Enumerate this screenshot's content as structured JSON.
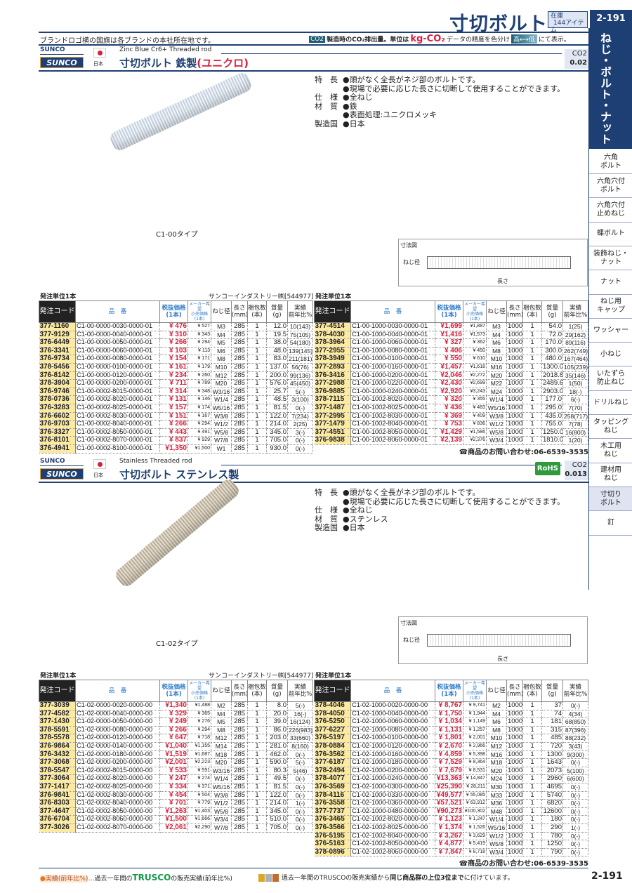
{
  "header": {
    "title": "寸切ボルト",
    "stock_label": "在庫",
    "stock_count": "144アイテム",
    "page": "2-191",
    "brand_note": "ブランドロゴ横の国旗は各ブランドの本社所在地です。",
    "co2_tag": "CO2",
    "co2_text": "製造時のCO₂排出量。単位は",
    "co2_unit": "kg-CO₂",
    "co2_accuracy": "データの精度を色分け",
    "co2_high": "高",
    "co2_low": "低",
    "co2_suffix": "にて表示。"
  },
  "sidebar": {
    "category": "ねじ・ボルト・ナット",
    "active": "寸切り\nボルト",
    "items": [
      "六角\nボルト",
      "六角穴付\nボルト",
      "六角穴付\n止めねじ",
      "蝶ボルト",
      "装飾ねじ・\nナット",
      "ナット",
      "ねじ用\nキャップ",
      "ワッシャー",
      "小ねじ",
      "いたずら\n防止ねじ",
      "ドリルねじ",
      "タッピング\nねじ",
      "木工用\nねじ",
      "建材用\nねじ",
      "寸切り\nボルト",
      "釘"
    ]
  },
  "table_headers": {
    "code": "発注コード",
    "part": "品　番",
    "price": "税抜価格\n(1本)",
    "maker_price": "メーカー希望\n小売価格\n(1本)",
    "size": "ねじ径",
    "length": "長さ\n(mm)",
    "qty": "梱包数\n(本)",
    "weight": "質量\n(g)",
    "sales": "実績\n前年比%"
  },
  "sections": [
    {
      "brand": "SUNCO",
      "logo": "SUNCO",
      "country": "日本",
      "en": "Zinc Blue Cr6+  Threaded rod",
      "title": "寸切ボルト 鉄製",
      "title_red": "(ユニクロ)",
      "co2_label": "CO2",
      "co2": "0.02",
      "rohs": "",
      "specs": [
        [
          "特　長",
          "●頭がなく全長がネジ部のボルトです。"
        ],
        [
          "",
          "●現場で必要に応じた長さに切断して使用することができます。"
        ],
        [
          "仕　様",
          "●全ねじ"
        ],
        [
          "材　質",
          "●鉄"
        ],
        [
          "",
          "●表面処理:ユニクロメッキ"
        ],
        [
          "製造国",
          "●日本"
        ]
      ],
      "caption": "C1-00タイプ",
      "diagram_title": "寸法図",
      "diagram_dia": "ねじ径",
      "diagram_len": "長さ",
      "left": {
        "unit": "発注単位1本",
        "maker": "サンコーインダストリー㈱[544977]",
        "rows": [
          [
            "377-1160",
            "C1-00-0000-0030-0000-01",
            "¥  476",
            "¥ 527",
            "M3",
            "285",
            "1",
            "12.0",
            "10(143)"
          ],
          [
            "377-9129",
            "C1-00-0000-0040-0000-01",
            "¥  310",
            "¥ 343",
            "M4",
            "285",
            "1",
            "19.5",
            "75(105)"
          ],
          [
            "376-6449",
            "C1-00-0000-0050-0000-01",
            "¥  266",
            "¥ 294",
            "M5",
            "285",
            "1",
            "38.0",
            "54(180)"
          ],
          [
            "376-3341",
            "C1-00-0000-0060-0000-01",
            "¥  103",
            "¥ 113",
            "M6",
            "285",
            "1",
            "48.0",
            "139(145)"
          ],
          [
            "376-9734",
            "C1-00-0000-0080-0000-01",
            "¥  154",
            "¥ 171",
            "M8",
            "285",
            "1",
            "83.0",
            "211(181)"
          ],
          [
            "378-5456",
            "C1-00-0000-0100-0000-01",
            "¥  161",
            "¥ 179",
            "M10",
            "285",
            "1",
            "137.0",
            "56(76)"
          ],
          [
            "376-8142",
            "C1-00-0000-0120-0000-01",
            "¥  234",
            "¥ 260",
            "M12",
            "285",
            "1",
            "200.0",
            "99(136)"
          ],
          [
            "378-3904",
            "C1-00-0000-0200-0000-01",
            "¥  711",
            "¥ 789",
            "M20",
            "285",
            "1",
            "576.0",
            "45(450)"
          ],
          [
            "376-9746",
            "C1-00-0002-8015-0000-01",
            "¥  314",
            "¥ 348",
            "W3/16",
            "285",
            "1",
            "25.7",
            "5(-)"
          ],
          [
            "378-0736",
            "C1-00-0002-8020-0000-01",
            "¥  131",
            "¥ 146",
            "W1/4",
            "285",
            "1",
            "48.5",
            "3(100)"
          ],
          [
            "376-3283",
            "C1-00-0002-8025-0000-01",
            "¥  157",
            "¥ 174",
            "W5/16",
            "285",
            "1",
            "81.5",
            "0(-)"
          ],
          [
            "376-6602",
            "C1-00-0002-8030-0000-01",
            "¥  151",
            "¥ 167",
            "W3/8",
            "285",
            "1",
            "122.0",
            "7(234)"
          ],
          [
            "376-9703",
            "C1-00-0002-8040-0000-01",
            "¥  266",
            "¥ 294",
            "W1/2",
            "285",
            "1",
            "214.0",
            "2(25)"
          ],
          [
            "376-3327",
            "C1-00-0002-8050-0000-01",
            "¥  443",
            "¥ 491",
            "W5/8",
            "285",
            "1",
            "345.0",
            "3(-)"
          ],
          [
            "376-8101",
            "C1-00-0002-8070-0000-01",
            "¥  837",
            "¥ 929",
            "W7/8",
            "285",
            "1",
            "705.0",
            "0(-)"
          ],
          [
            "376-4941",
            "C1-00-0002-8100-0000-01",
            "¥1,350",
            "¥1,500",
            "W1",
            "285",
            "1",
            "930.0",
            "0(-)"
          ]
        ]
      },
      "right": {
        "unit": "発注単位1本",
        "contact": "☎商品のお問い合わせ:06-6539-3535",
        "rows": [
          [
            "377-4514",
            "C1-00-1000-0030-0000-01",
            "¥1,699",
            "¥1,887",
            "M3",
            "1000",
            "1",
            "54.0",
            "1(25)"
          ],
          [
            "378-4030",
            "C1-00-1000-0040-0000-01",
            "¥1,416",
            "¥1,573",
            "M4",
            "1000",
            "1",
            "72.0",
            "29(162)"
          ],
          [
            "378-3964",
            "C1-00-1000-0060-0000-01",
            "¥  327",
            "¥ 362",
            "M6",
            "1000",
            "1",
            "170.0",
            "89(116)"
          ],
          [
            "377-2955",
            "C1-00-1000-0080-0000-01",
            "¥  406",
            "¥ 450",
            "M8",
            "1000",
            "1",
            "300.0",
            "262(749)"
          ],
          [
            "378-3949",
            "C1-00-1000-0100-0000-01",
            "¥  550",
            "¥ 610",
            "M10",
            "1000",
            "1",
            "480.0",
            "167(464)"
          ],
          [
            "377-2893",
            "C1-00-1000-0160-0000-01",
            "¥1,457",
            "¥1,618",
            "M16",
            "1000",
            "1",
            "1300.0",
            "105(239)"
          ],
          [
            "376-3416",
            "C1-00-1000-0200-0000-01",
            "¥2,046",
            "¥2,272",
            "M20",
            "1000",
            "1",
            "2018.8",
            "35(146)"
          ],
          [
            "377-2988",
            "C1-00-1000-0220-0000-01",
            "¥2,430",
            "¥2,699",
            "M22",
            "1000",
            "1",
            "2489.6",
            "1(50)"
          ],
          [
            "376-9885",
            "C1-00-1000-0240-0000-01",
            "¥2,920",
            "¥3,243",
            "M24",
            "1000",
            "1",
            "2903.0",
            "18(-)"
          ],
          [
            "378-7115",
            "C1-00-1002-8020-0000-01",
            "¥  320",
            "¥ 355",
            "W1/4",
            "1000",
            "1",
            "177.0",
            "6(-)"
          ],
          [
            "377-1487",
            "C1-00-1002-8025-0000-01",
            "¥  436",
            "¥ 483",
            "W5/16",
            "1000",
            "1",
            "295.0",
            "7(70)"
          ],
          [
            "377-2995",
            "C1-00-1002-8030-0000-01",
            "¥  369",
            "¥ 409",
            "W3/8",
            "1000",
            "1",
            "435.0",
            "258(717)"
          ],
          [
            "377-1479",
            "C1-00-1002-8040-0000-01",
            "¥  753",
            "¥ 836",
            "W1/2",
            "1000",
            "1",
            "755.0",
            "7(78)"
          ],
          [
            "377-4551",
            "C1-00-1002-8050-0000-01",
            "¥1,429",
            "¥1,586",
            "W5/8",
            "1000",
            "1",
            "1250.0",
            "16(800)"
          ],
          [
            "376-9838",
            "C1-00-1002-8060-0000-01",
            "¥2,139",
            "¥2,376",
            "W3/4",
            "1000",
            "1",
            "1810.0",
            "1(20)"
          ]
        ]
      }
    },
    {
      "brand": "SUNCO",
      "logo": "SUNCO",
      "country": "日本",
      "en": "Stainless Threaded rod",
      "title": "寸切ボルト ステンレス製",
      "title_red": "",
      "co2_label": "CO2",
      "co2": "0.013",
      "rohs": "RoHS",
      "specs": [
        [
          "特　長",
          "●頭がなく全長がネジ部のボルトです。"
        ],
        [
          "",
          "●現場で必要に応じた長さに切断して使用することができます。"
        ],
        [
          "仕　様",
          "●全ねじ"
        ],
        [
          "材　質",
          "●ステンレス"
        ],
        [
          "製造国",
          "●日本"
        ]
      ],
      "caption": "C1-02タイプ",
      "diagram_title": "寸法図",
      "diagram_dia": "ねじ径",
      "diagram_len": "長さ",
      "left": {
        "unit": "発注単位1本",
        "maker": "サンコーインダストリー㈱[544977]",
        "rows": [
          [
            "377-3039",
            "C1-02-0000-0020-0000-00",
            "¥1,340",
            "¥1,488",
            "M2",
            "285",
            "1",
            "8.0",
            "5(-)"
          ],
          [
            "377-4582",
            "C1-02-0000-0040-0000-00",
            "¥  329",
            "¥ 365",
            "M4",
            "285",
            "1",
            "20.0",
            "16(-)"
          ],
          [
            "377-1430",
            "C1-02-0000-0050-0000-00",
            "¥  249",
            "¥ 276",
            "M5",
            "285",
            "1",
            "39.0",
            "16(124)"
          ],
          [
            "378-5591",
            "C1-02-0000-0080-0000-00",
            "¥  266",
            "¥ 294",
            "M8",
            "285",
            "1",
            "86.0",
            "226(983)"
          ],
          [
            "378-5578",
            "C1-02-0000-0120-0000-00",
            "¥  647",
            "¥ 718",
            "M12",
            "285",
            "1",
            "203.0",
            "33(660)"
          ],
          [
            "376-9864",
            "C1-02-0000-0140-0000-00",
            "¥1,040",
            "¥1,155",
            "M14",
            "285",
            "1",
            "281.0",
            "8(160)"
          ],
          [
            "376-3432",
            "C1-02-0000-0180-0000-00",
            "¥1,519",
            "¥1,687",
            "M18",
            "285",
            "1",
            "462.0",
            "0(-)"
          ],
          [
            "377-3068",
            "C1-02-0000-0200-0000-00",
            "¥2,001",
            "¥2,223",
            "M20",
            "285",
            "1",
            "590.0",
            "5(-)"
          ],
          [
            "378-5547",
            "C1-02-0002-8015-0000-00",
            "¥  533",
            "¥ 591",
            "W3/16",
            "285",
            "1",
            "80.3",
            "5(46)"
          ],
          [
            "377-3064",
            "C1-02-0002-8020-0000-00",
            "¥  247",
            "¥ 274",
            "W1/4",
            "285",
            "1",
            "49.5",
            "0(-)"
          ],
          [
            "377-1417",
            "C1-02-0002-8025-0000-00",
            "¥  334",
            "¥ 371",
            "W5/16",
            "285",
            "1",
            "81.5",
            "0(-)"
          ],
          [
            "376-9841",
            "C1-02-0002-8030-0000-00",
            "¥  454",
            "¥ 504",
            "W3/8",
            "285",
            "1",
            "122.0",
            "0(-)"
          ],
          [
            "376-8303",
            "C1-02-0002-8040-0000-00",
            "¥  701",
            "¥ 779",
            "W1/2",
            "285",
            "1",
            "214.0",
            "1(-)"
          ],
          [
            "377-4647",
            "C1-02-0002-8050-0000-00",
            "¥1,263",
            "¥1,403",
            "W5/8",
            "285",
            "1",
            "345.0",
            "0(-)"
          ],
          [
            "376-6704",
            "C1-02-0002-8060-0000-00",
            "¥1,500",
            "¥1,666",
            "W3/4",
            "285",
            "1",
            "510.0",
            "0(-)"
          ],
          [
            "377-3026",
            "C1-02-0002-8070-0000-00",
            "¥2,061",
            "¥2,290",
            "W7/8",
            "285",
            "1",
            "705.0",
            "0(-)"
          ]
        ]
      },
      "right": {
        "unit": "発注単位1本",
        "contact": "☎商品のお問い合わせ:06-6539-3535",
        "rows": [
          [
            "378-4046",
            "C1-02-1000-0020-0000-00",
            "¥ 8,767",
            "¥ 9,741",
            "M2",
            "1000",
            "1",
            "37",
            "0(-)"
          ],
          [
            "378-4050",
            "C1-02-1000-0040-0000-00",
            "¥ 1,750",
            "¥ 1,944",
            "M4",
            "1000",
            "1",
            "74",
            "4(34)"
          ],
          [
            "376-5250",
            "C1-02-1000-0060-0000-00",
            "¥ 1,034",
            "¥ 1,149",
            "M6",
            "1000",
            "1",
            "181",
            "68(850)"
          ],
          [
            "377-6227",
            "C1-02-1000-0080-0000-00",
            "¥ 1,131",
            "¥ 1,257",
            "M8",
            "1000",
            "1",
            "315",
            "87(396)"
          ],
          [
            "376-5197",
            "C1-02-1000-0100-0000-00",
            "¥ 1,801",
            "¥ 2,001",
            "M10",
            "1000",
            "1",
            "485",
            "88(232)"
          ],
          [
            "378-0884",
            "C1-02-1000-0120-0000-00",
            "¥ 2,670",
            "¥ 2,966",
            "M12",
            "1000",
            "1",
            "720",
            "3(43)"
          ],
          [
            "376-3562",
            "C1-02-1000-0160-0000-00",
            "¥ 4,859",
            "¥ 5,398",
            "M16",
            "1000",
            "1",
            "1300",
            "9(300)"
          ],
          [
            "377-6187",
            "C1-02-1000-0180-0000-00",
            "¥ 7,529",
            "¥ 8,364",
            "M18",
            "1000",
            "1",
            "1643",
            "0(-)"
          ],
          [
            "378-2494",
            "C1-02-1000-0200-0000-00",
            "¥ 7,679",
            "¥ 8,531",
            "M20",
            "1000",
            "1",
            "2073",
            "5(100)"
          ],
          [
            "378-4077",
            "C1-02-1000-0240-0000-00",
            "¥13,363",
            "¥ 14,847",
            "M24",
            "1000",
            "1",
            "2960",
            "6(600)"
          ],
          [
            "376-3569",
            "C1-02-1000-0300-0000-00",
            "¥25,390",
            "¥ 28,211",
            "M30",
            "1000",
            "1",
            "4695",
            "0(-)"
          ],
          [
            "378-4116",
            "C1-02-1000-0330-0000-00",
            "¥49,577",
            "¥ 55,085",
            "M33",
            "1000",
            "1",
            "5740",
            "0(-)"
          ],
          [
            "376-3558",
            "C1-02-1000-0360-0000-00",
            "¥57,521",
            "¥ 63,912",
            "M36",
            "1000",
            "1",
            "6820",
            "0(-)"
          ],
          [
            "377-7737",
            "C1-02-1000-0480-0000-00",
            "¥90,273",
            "¥100,302",
            "M48",
            "1000",
            "1",
            "12600",
            "0(-)"
          ],
          [
            "376-3465",
            "C1-02-1002-8020-0000-00",
            "¥ 1,123",
            "¥ 1,247",
            "W1/4",
            "1000",
            "1",
            "180",
            "0(-)"
          ],
          [
            "376-3566",
            "C1-02-1002-8025-0000-00",
            "¥ 1,374",
            "¥ 1,526",
            "W5/16",
            "1000",
            "1",
            "290",
            "1(-)"
          ],
          [
            "376-5195",
            "C1-02-1002-8040-0000-00",
            "¥ 3,267",
            "¥ 3,629",
            "W1/2",
            "1000",
            "1",
            "780",
            "0(-)"
          ],
          [
            "376-5163",
            "C1-02-1002-8050-0000-00",
            "¥ 4,877",
            "¥ 5,419",
            "W5/8",
            "1000",
            "1",
            "1250",
            "0(-)"
          ],
          [
            "378-0896",
            "C1-02-1002-8060-0000-00",
            "¥ 7,847",
            "¥ 8,718",
            "W3/4",
            "1000",
            "1",
            "790",
            "0(-)"
          ]
        ]
      }
    }
  ],
  "footer": {
    "sales_tag": "実績(前年比%)",
    "sales_text": "…過去一年間の",
    "trusco": "TRUSCO",
    "sales_text2": "の販売実績(前年比%)",
    "crowns": [
      "1",
      "2",
      "3"
    ],
    "rank_text": "過去一年間のTRUSCOの販売実績から",
    "rank_bold": "同じ商品群の上位3位まで",
    "rank_suffix": "に付けています。",
    "page": "2-191"
  }
}
